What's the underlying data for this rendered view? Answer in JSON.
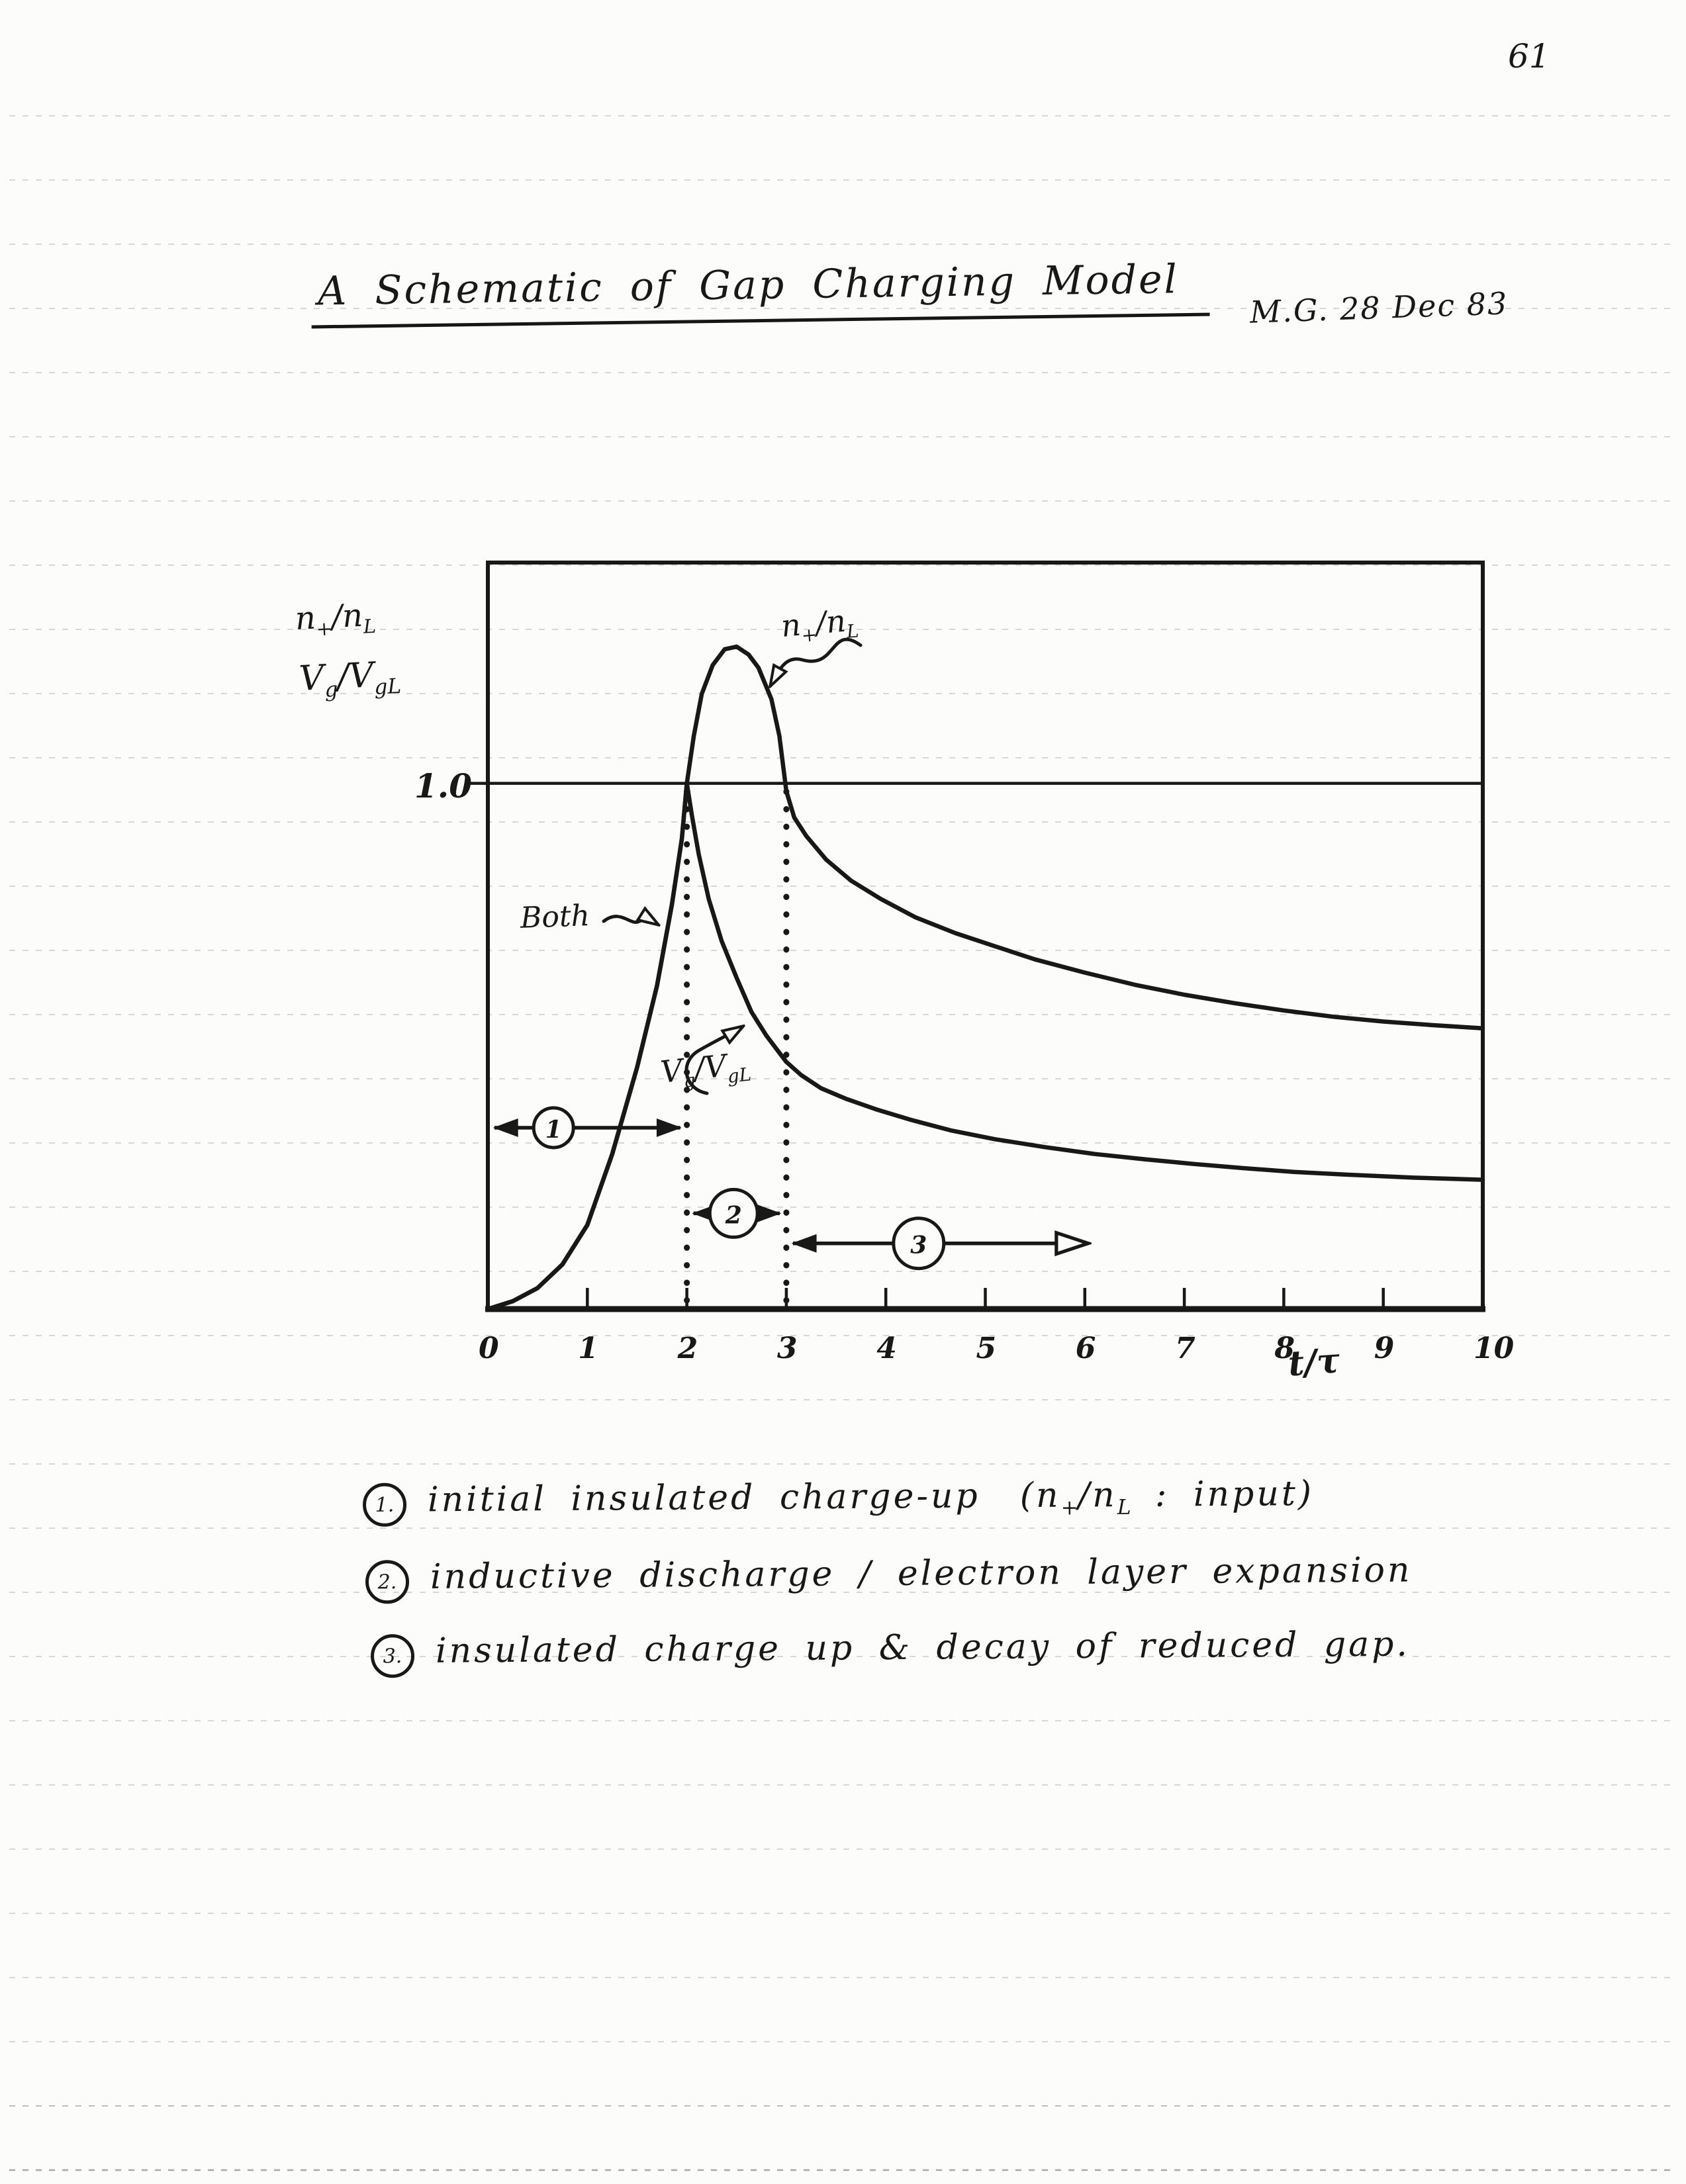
{
  "page": {
    "number": "61"
  },
  "header": {
    "title": "A Schematic of Gap Charging Model",
    "credit": "M.G. 28 Dec 83"
  },
  "chart_data": {
    "type": "line",
    "title": "A Schematic of Gap Charging Model",
    "xlabel": "t/τ",
    "ylabel_lines": [
      [
        "n",
        "+",
        "/n",
        "L"
      ],
      [
        "V",
        "g",
        "/V",
        "gL"
      ]
    ],
    "y_ref_label": "1.0",
    "y_gridline": 1.0,
    "xlim": [
      0,
      10
    ],
    "ylim": [
      0,
      1.42
    ],
    "x_ticks": [
      "0",
      "1",
      "2",
      "3",
      "4",
      "5",
      "6",
      "7",
      "8",
      "9",
      "10"
    ],
    "dotted_vlines": [
      2,
      3
    ],
    "shared_label": "Both",
    "legend_position": "on-curve-annotations",
    "grid": false,
    "series": [
      {
        "name_parts": [
          "n",
          "+",
          "/n",
          "L"
        ],
        "points": [
          [
            0,
            0
          ],
          [
            0.25,
            0.015
          ],
          [
            0.5,
            0.04
          ],
          [
            0.75,
            0.085
          ],
          [
            1.0,
            0.16
          ],
          [
            1.25,
            0.295
          ],
          [
            1.5,
            0.46
          ],
          [
            1.7,
            0.615
          ],
          [
            1.85,
            0.77
          ],
          [
            1.95,
            0.895
          ],
          [
            2.0,
            1.0
          ],
          [
            2.07,
            1.09
          ],
          [
            2.15,
            1.17
          ],
          [
            2.26,
            1.225
          ],
          [
            2.38,
            1.255
          ],
          [
            2.5,
            1.26
          ],
          [
            2.62,
            1.245
          ],
          [
            2.72,
            1.22
          ],
          [
            2.85,
            1.16
          ],
          [
            2.93,
            1.09
          ],
          [
            3.0,
            0.985
          ],
          [
            3.08,
            0.935
          ],
          [
            3.2,
            0.9
          ],
          [
            3.4,
            0.855
          ],
          [
            3.65,
            0.815
          ],
          [
            3.95,
            0.78
          ],
          [
            4.3,
            0.745
          ],
          [
            4.7,
            0.715
          ],
          [
            5.1,
            0.69
          ],
          [
            5.5,
            0.665
          ],
          [
            6.0,
            0.64
          ],
          [
            6.5,
            0.617
          ],
          [
            7.0,
            0.598
          ],
          [
            7.5,
            0.582
          ],
          [
            8.0,
            0.568
          ],
          [
            8.5,
            0.556
          ],
          [
            9.0,
            0.547
          ],
          [
            9.5,
            0.54
          ],
          [
            10,
            0.534
          ]
        ]
      },
      {
        "name_parts": [
          "V",
          "g",
          "/V",
          "gL"
        ],
        "points": [
          [
            0,
            0
          ],
          [
            0.25,
            0.015
          ],
          [
            0.5,
            0.04
          ],
          [
            0.75,
            0.085
          ],
          [
            1.0,
            0.16
          ],
          [
            1.25,
            0.295
          ],
          [
            1.5,
            0.46
          ],
          [
            1.7,
            0.615
          ],
          [
            1.85,
            0.77
          ],
          [
            1.95,
            0.895
          ],
          [
            2.0,
            1.0
          ],
          [
            2.05,
            0.94
          ],
          [
            2.12,
            0.865
          ],
          [
            2.22,
            0.78
          ],
          [
            2.35,
            0.7
          ],
          [
            2.5,
            0.63
          ],
          [
            2.65,
            0.565
          ],
          [
            2.8,
            0.52
          ],
          [
            3.0,
            0.47
          ],
          [
            3.15,
            0.445
          ],
          [
            3.35,
            0.42
          ],
          [
            3.6,
            0.4
          ],
          [
            3.9,
            0.38
          ],
          [
            4.25,
            0.36
          ],
          [
            4.65,
            0.34
          ],
          [
            5.1,
            0.323
          ],
          [
            5.6,
            0.308
          ],
          [
            6.1,
            0.295
          ],
          [
            6.6,
            0.285
          ],
          [
            7.1,
            0.276
          ],
          [
            7.6,
            0.268
          ],
          [
            8.1,
            0.261
          ],
          [
            8.6,
            0.256
          ],
          [
            9.3,
            0.25
          ],
          [
            10,
            0.246
          ]
        ]
      }
    ],
    "stages": [
      {
        "num": "1",
        "from": 0,
        "to": 2,
        "v": 0.345,
        "circle_t": 0.66,
        "r": 30,
        "ends": "solid-solid"
      },
      {
        "num": "2",
        "from": 2,
        "to": 3,
        "v": 0.182,
        "circle_t": 2.47,
        "r": 36,
        "ends": "solid-solid"
      },
      {
        "num": "3",
        "from": 3,
        "to": 6.1,
        "v": 0.125,
        "circle_t": 4.33,
        "r": 38,
        "ends": "solid-open"
      }
    ]
  },
  "legend_notes": [
    {
      "num": "1.",
      "text": "initial insulated charge-up",
      "suffix_parts": [
        "(n",
        "+",
        "/n",
        "L",
        " : input)"
      ]
    },
    {
      "num": "2.",
      "text": "inductive discharge / electron layer expansion"
    },
    {
      "num": "3.",
      "text": "insulated charge up & decay of reduced gap."
    }
  ]
}
